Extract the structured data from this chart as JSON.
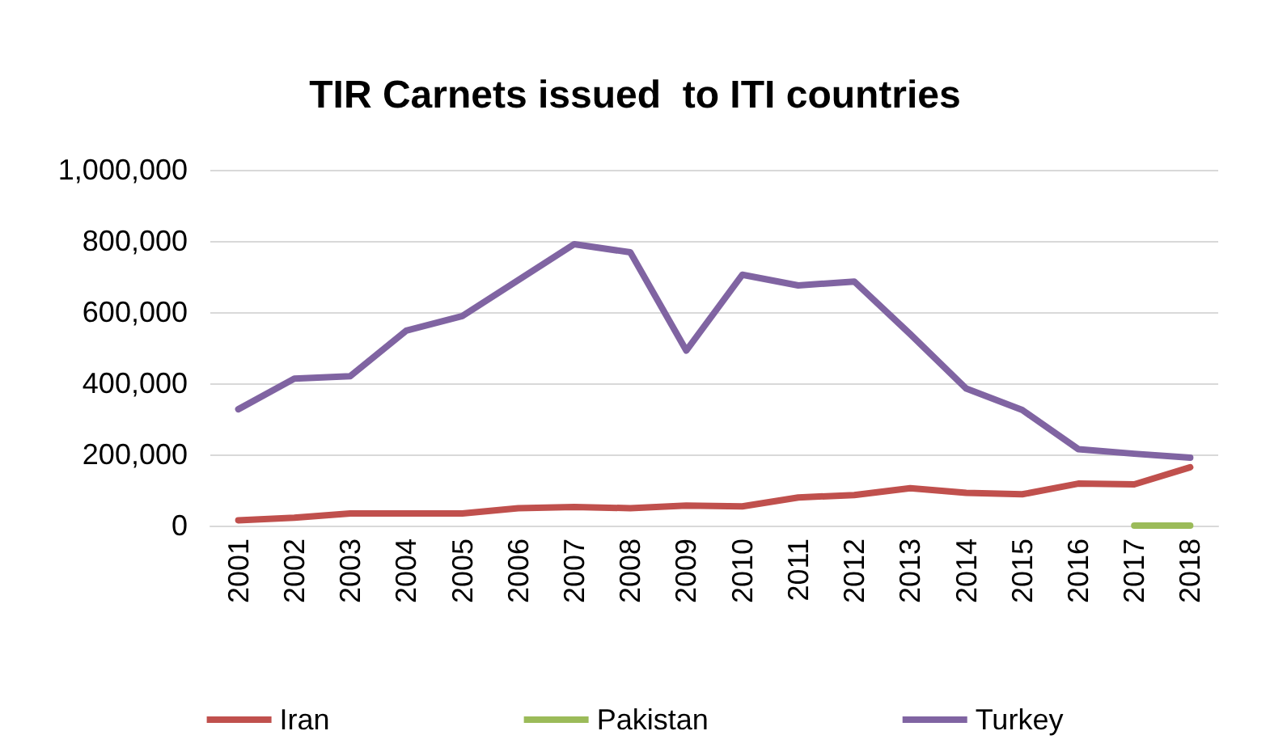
{
  "chart_data": {
    "type": "line",
    "title": "TIR Carnets issued  to ITI countries",
    "categories": [
      "2001",
      "2002",
      "2003",
      "2004",
      "2005",
      "2006",
      "2007",
      "2008",
      "2009",
      "2010",
      "2011",
      "2012",
      "2013",
      "2014",
      "2015",
      "2016",
      "2017",
      "2018"
    ],
    "series": [
      {
        "name": "Iran",
        "color": "#c0504d",
        "values": [
          15000,
          22000,
          34000,
          34000,
          34000,
          49000,
          52000,
          49000,
          56000,
          54000,
          79000,
          86000,
          105000,
          92000,
          88000,
          118000,
          116000,
          164000
        ]
      },
      {
        "name": "Pakistan",
        "color": "#9bbb59",
        "values": [
          null,
          null,
          null,
          null,
          null,
          null,
          null,
          null,
          null,
          null,
          null,
          null,
          null,
          null,
          null,
          null,
          0,
          0
        ]
      },
      {
        "name": "Turkey",
        "color": "#8064a2",
        "values": [
          327000,
          413000,
          420000,
          548000,
          589000,
          690000,
          791000,
          768000,
          492000,
          705000,
          675000,
          686000,
          538000,
          385000,
          325000,
          215000,
          202000,
          191000
        ]
      }
    ],
    "ylim": [
      0,
      1000000
    ],
    "yticks": [
      0,
      {
        "value": 200000,
        "label": "200,000"
      },
      {
        "value": 400000,
        "label": "400,000"
      },
      {
        "value": 600000,
        "label": "600,000"
      },
      {
        "value": 800000,
        "label": "800,000"
      },
      {
        "value": 1000000,
        "label": "1,000,000"
      }
    ],
    "grid": "y",
    "legend": "bottom",
    "marker": "none",
    "line_style": "solid"
  }
}
